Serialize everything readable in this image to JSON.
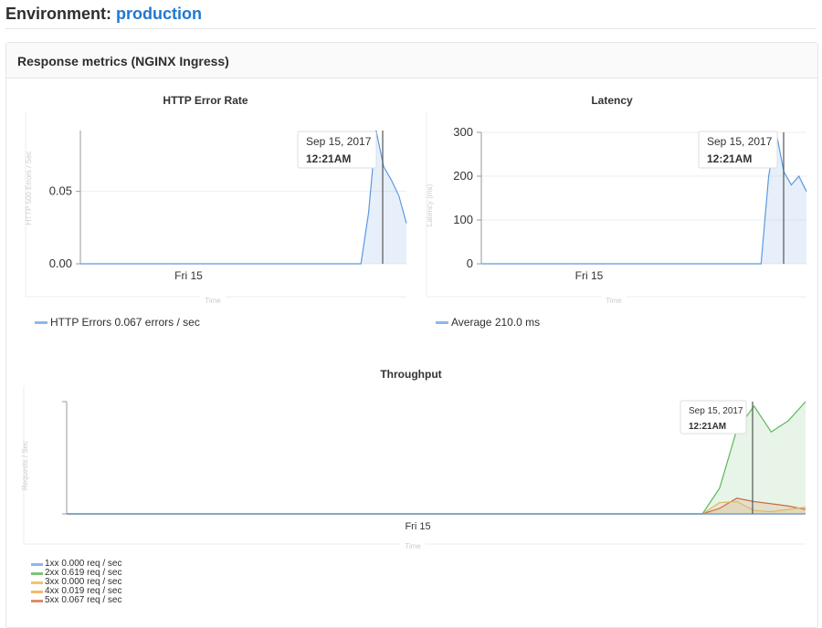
{
  "header": {
    "label": "Environment:",
    "environment": "production"
  },
  "panel": {
    "title": "Response metrics (NGINX Ingress)"
  },
  "tooltip": {
    "date": "Sep 15, 2017",
    "time": "12:21AM"
  },
  "chart_data": [
    {
      "type": "area",
      "title": "HTTP Error Rate",
      "xlabel": "Time",
      "ylabel": "HTTP 500 Errors / Sec",
      "xtick": "Fri 15",
      "yticks": [
        "0.00",
        "0.05"
      ],
      "ytick_values": [
        0,
        0.05
      ],
      "ylim": [
        0,
        0.092
      ],
      "grid": true,
      "series": [
        {
          "name": "HTTP Errors",
          "color": "#5b99e0",
          "legend": "HTTP Errors 0.067 errors / sec",
          "values": [
            0,
            0,
            0,
            0,
            0,
            0,
            0,
            0,
            0,
            0,
            0,
            0,
            0,
            0,
            0,
            0,
            0,
            0,
            0,
            0,
            0,
            0,
            0,
            0,
            0,
            0,
            0,
            0,
            0,
            0,
            0,
            0,
            0,
            0,
            0,
            0,
            0,
            0,
            0.035,
            0.092,
            0.067,
            0.058,
            0.047,
            0.028
          ]
        }
      ]
    },
    {
      "type": "area",
      "title": "Latency",
      "xlabel": "Time",
      "ylabel": "Latency (ms)",
      "xtick": "Fri 15",
      "yticks": [
        "0",
        "100",
        "200",
        "300"
      ],
      "ytick_values": [
        0,
        100,
        200,
        300
      ],
      "ylim": [
        0,
        300
      ],
      "grid": true,
      "series": [
        {
          "name": "Average",
          "color": "#5b99e0",
          "legend": "Average 210.0 ms",
          "values": [
            0,
            0,
            0,
            0,
            0,
            0,
            0,
            0,
            0,
            0,
            0,
            0,
            0,
            0,
            0,
            0,
            0,
            0,
            0,
            0,
            0,
            0,
            0,
            0,
            0,
            0,
            0,
            0,
            0,
            0,
            0,
            0,
            0,
            0,
            0,
            0,
            0,
            0,
            200,
            300,
            210,
            180,
            200,
            165
          ]
        }
      ]
    },
    {
      "type": "area",
      "title": "Throughput",
      "xlabel": "Time",
      "ylabel": "Requests / Sec",
      "xtick": "Fri 15",
      "yticks": [],
      "ytick_values": [
        0,
        1
      ],
      "ylim": [
        0,
        1
      ],
      "grid": false,
      "series": [
        {
          "name": "1xx",
          "color": "#5b99e0",
          "legend": "1xx 0.000 req / sec",
          "values": [
            0,
            0,
            0,
            0,
            0,
            0,
            0,
            0,
            0,
            0,
            0,
            0,
            0,
            0,
            0,
            0,
            0,
            0,
            0,
            0,
            0,
            0,
            0,
            0,
            0,
            0,
            0,
            0,
            0,
            0,
            0,
            0,
            0,
            0,
            0,
            0,
            0,
            0,
            0,
            0,
            0,
            0,
            0,
            0
          ]
        },
        {
          "name": "2xx",
          "color": "#5cb85c",
          "legend": "2xx 0.619 req / sec",
          "values": [
            0,
            0,
            0,
            0,
            0,
            0,
            0,
            0,
            0,
            0,
            0,
            0,
            0,
            0,
            0,
            0,
            0,
            0,
            0,
            0,
            0,
            0,
            0,
            0,
            0,
            0,
            0,
            0,
            0,
            0,
            0,
            0,
            0,
            0,
            0,
            0,
            0,
            0,
            0.23,
            0.75,
            0.96,
            0.73,
            0.83,
            1.0
          ]
        },
        {
          "name": "3xx",
          "color": "#f0ad4e",
          "legend": "3xx 0.000 req / sec",
          "values": [
            0,
            0,
            0,
            0,
            0,
            0,
            0,
            0,
            0,
            0,
            0,
            0,
            0,
            0,
            0,
            0,
            0,
            0,
            0,
            0,
            0,
            0,
            0,
            0,
            0,
            0,
            0,
            0,
            0,
            0,
            0,
            0,
            0,
            0,
            0,
            0,
            0,
            0,
            0,
            0,
            0,
            0,
            0,
            0
          ]
        },
        {
          "name": "4xx",
          "color": "#f5b86a",
          "legend": "4xx 0.019 req / sec",
          "values": [
            0,
            0,
            0,
            0,
            0,
            0,
            0,
            0,
            0,
            0,
            0,
            0,
            0,
            0,
            0,
            0,
            0,
            0,
            0,
            0,
            0,
            0,
            0,
            0,
            0,
            0,
            0,
            0,
            0,
            0,
            0,
            0,
            0,
            0,
            0,
            0,
            0,
            0,
            0.1,
            0.11,
            0.03,
            0.02,
            0.04,
            0.06
          ]
        },
        {
          "name": "5xx",
          "color": "#e05d3a",
          "legend": "5xx 0.067 req / sec",
          "values": [
            0,
            0,
            0,
            0,
            0,
            0,
            0,
            0,
            0,
            0,
            0,
            0,
            0,
            0,
            0,
            0,
            0,
            0,
            0,
            0,
            0,
            0,
            0,
            0,
            0,
            0,
            0,
            0,
            0,
            0,
            0,
            0,
            0,
            0,
            0,
            0,
            0,
            0,
            0.05,
            0.14,
            0.11,
            0.09,
            0.07,
            0.04
          ]
        }
      ]
    }
  ]
}
